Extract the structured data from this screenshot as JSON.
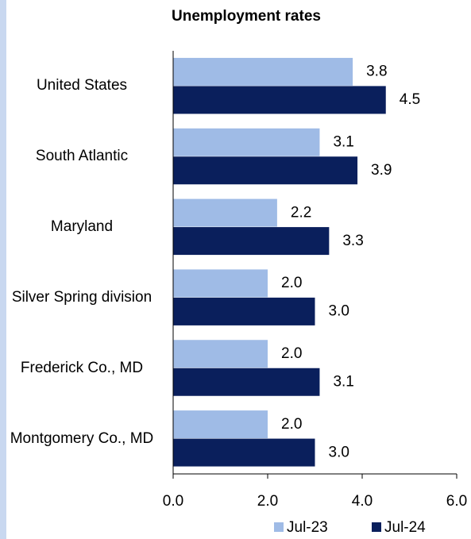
{
  "chart_data": {
    "type": "bar",
    "orientation": "horizontal",
    "title": "Unemployment rates",
    "categories": [
      "United States",
      "South Atlantic",
      "Maryland",
      "Silver Spring division",
      "Frederick Co., MD",
      "Montgomery Co., MD"
    ],
    "series": [
      {
        "name": "Jul-23",
        "color": "#9fbbe6",
        "values": [
          3.8,
          3.1,
          2.2,
          2.0,
          2.0,
          2.0
        ],
        "value_labels": [
          "3.8",
          "3.1",
          "2.2",
          "2.0",
          "2.0",
          "2.0"
        ]
      },
      {
        "name": "Jul-24",
        "color": "#0a1f5c",
        "values": [
          4.5,
          3.9,
          3.3,
          3.0,
          3.1,
          3.0
        ],
        "value_labels": [
          "4.5",
          "3.9",
          "3.3",
          "3.0",
          "3.1",
          "3.0"
        ]
      }
    ],
    "xlim": [
      0,
      6
    ],
    "xticks": [
      {
        "value": 0,
        "label": "0.0"
      },
      {
        "value": 2,
        "label": "2.0"
      },
      {
        "value": 4,
        "label": "4.0"
      },
      {
        "value": 6,
        "label": "6.0"
      }
    ],
    "grid": false,
    "legend": "bottom"
  }
}
